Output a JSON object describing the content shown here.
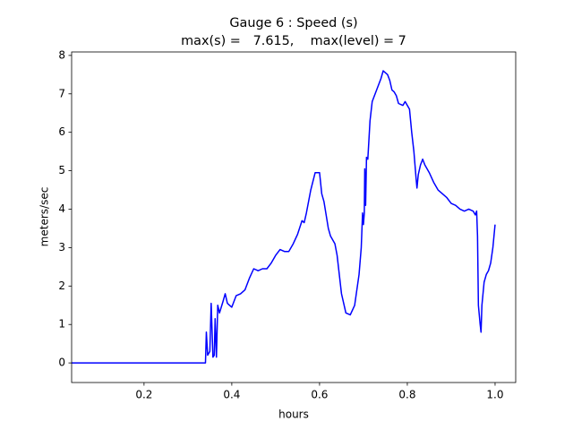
{
  "chart_data": {
    "type": "line",
    "title": "Gauge 6 : Speed (s)",
    "subtitle": "max(s) =   7.615,    max(level) = 7",
    "xlabel": "hours",
    "ylabel": "meters/sec",
    "color": "#0000ff",
    "x": [
      0.035,
      0.34,
      0.342,
      0.345,
      0.35,
      0.353,
      0.357,
      0.36,
      0.362,
      0.365,
      0.368,
      0.372,
      0.38,
      0.385,
      0.39,
      0.395,
      0.4,
      0.41,
      0.42,
      0.43,
      0.44,
      0.45,
      0.46,
      0.47,
      0.48,
      0.49,
      0.5,
      0.51,
      0.52,
      0.53,
      0.54,
      0.55,
      0.56,
      0.565,
      0.57,
      0.58,
      0.59,
      0.6,
      0.605,
      0.61,
      0.62,
      0.625,
      0.635,
      0.64,
      0.65,
      0.66,
      0.67,
      0.68,
      0.69,
      0.695,
      0.698,
      0.7,
      0.702,
      0.703,
      0.705,
      0.707,
      0.71,
      0.715,
      0.72,
      0.73,
      0.74,
      0.745,
      0.755,
      0.76,
      0.765,
      0.77,
      0.775,
      0.78,
      0.79,
      0.795,
      0.8,
      0.805,
      0.81,
      0.815,
      0.82,
      0.822,
      0.825,
      0.83,
      0.835,
      0.84,
      0.85,
      0.86,
      0.87,
      0.88,
      0.89,
      0.9,
      0.91,
      0.92,
      0.93,
      0.94,
      0.95,
      0.955,
      0.958,
      0.96,
      0.962,
      0.966,
      0.968,
      0.97,
      0.975,
      0.98,
      0.985,
      0.99,
      0.995,
      1.0
    ],
    "values": [
      0,
      0,
      0.8,
      0.2,
      0.3,
      1.55,
      0.15,
      0.2,
      1.15,
      0.15,
      1.5,
      1.3,
      1.6,
      1.8,
      1.55,
      1.5,
      1.45,
      1.75,
      1.8,
      1.9,
      2.2,
      2.45,
      2.4,
      2.45,
      2.45,
      2.6,
      2.8,
      2.95,
      2.9,
      2.9,
      3.1,
      3.35,
      3.7,
      3.65,
      3.9,
      4.5,
      4.95,
      4.95,
      4.4,
      4.2,
      3.5,
      3.3,
      3.1,
      2.8,
      1.8,
      1.3,
      1.25,
      1.5,
      2.3,
      3.0,
      3.9,
      3.6,
      3.9,
      5.05,
      4.1,
      5.35,
      5.3,
      6.3,
      6.8,
      7.1,
      7.4,
      7.6,
      7.5,
      7.35,
      7.1,
      7.05,
      6.95,
      6.75,
      6.7,
      6.8,
      6.7,
      6.6,
      6.0,
      5.5,
      4.8,
      4.55,
      4.9,
      5.15,
      5.3,
      5.15,
      4.95,
      4.7,
      4.5,
      4.4,
      4.3,
      4.15,
      4.1,
      4.0,
      3.95,
      4.0,
      3.95,
      3.85,
      3.95,
      3.3,
      1.5,
      1.0,
      0.8,
      1.5,
      2.1,
      2.3,
      2.4,
      2.6,
      3.0,
      3.6
    ],
    "xlim": [
      0.035,
      1.047
    ],
    "ylim": [
      -0.51,
      8.09
    ],
    "xticks": [
      0.2,
      0.4,
      0.6,
      0.8,
      {
        "value": 1,
        "label": "1.0"
      }
    ],
    "yticks": [
      0,
      1,
      2,
      3,
      4,
      5,
      6,
      7,
      8
    ]
  }
}
